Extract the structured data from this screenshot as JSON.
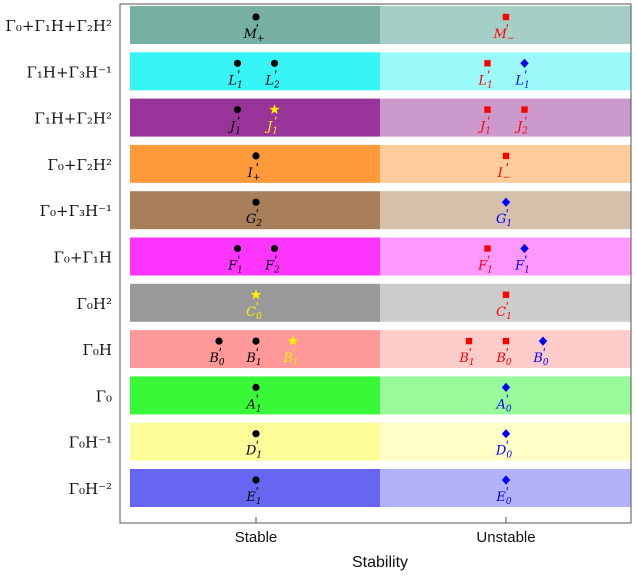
{
  "chart_data": {
    "type": "categorical-dot",
    "xlabel": "Stability",
    "x_categories": [
      "Stable",
      "Unstable"
    ],
    "rows": [
      {
        "label": "Γ₀+Γ₁H+Γ₂H²",
        "stable_color": "#76b0a3",
        "unstable_color": "#a4cfc7"
      },
      {
        "label": "Γ₁H+Γ₃H⁻¹",
        "stable_color": "#37f4f4",
        "unstable_color": "#9cf9f9"
      },
      {
        "label": "Γ₁H+Γ₂H²",
        "stable_color": "#99349b",
        "unstable_color": "#cc99cc"
      },
      {
        "label": "Γ₀+Γ₂H²",
        "stable_color": "#ff9a3a",
        "unstable_color": "#ffcc9c"
      },
      {
        "label": "Γ₀+Γ₃H⁻¹",
        "stable_color": "#a87e5b",
        "unstable_color": "#d5c0ac"
      },
      {
        "label": "Γ₀+Γ₁H",
        "stable_color": "#ff34ff",
        "unstable_color": "#ff99ff"
      },
      {
        "label": "Γ₀H²",
        "stable_color": "#999999",
        "unstable_color": "#cccccc"
      },
      {
        "label": "Γ₀H",
        "stable_color": "#ff9999",
        "unstable_color": "#ffcccc"
      },
      {
        "label": "Γ₀",
        "stable_color": "#38f838",
        "unstable_color": "#99fa99"
      },
      {
        "label": "Γ₀H⁻¹",
        "stable_color": "#fdfd99",
        "unstable_color": "#fefec6"
      },
      {
        "label": "Γ₀H⁻²",
        "stable_color": "#6666f1",
        "unstable_color": "#b2b2fa"
      }
    ],
    "marker_styles": {
      "circle": "#000000",
      "star": "#ffee00",
      "square": "#ff0000",
      "diamond": "#0000ff"
    },
    "points": [
      {
        "row": 0,
        "stability": "Stable",
        "offset": 0,
        "marker": "circle",
        "label": "M+"
      },
      {
        "row": 0,
        "stability": "Unstable",
        "offset": 0,
        "marker": "square",
        "label": "M−"
      },
      {
        "row": 1,
        "stability": "Stable",
        "offset": -1,
        "marker": "circle",
        "label": "L1"
      },
      {
        "row": 1,
        "stability": "Stable",
        "offset": 1,
        "marker": "circle",
        "label": "L2"
      },
      {
        "row": 1,
        "stability": "Unstable",
        "offset": -1,
        "marker": "square",
        "label": "L1"
      },
      {
        "row": 1,
        "stability": "Unstable",
        "offset": 1,
        "marker": "diamond",
        "label": "L1"
      },
      {
        "row": 2,
        "stability": "Stable",
        "offset": -1,
        "marker": "circle",
        "label": "J1"
      },
      {
        "row": 2,
        "stability": "Stable",
        "offset": 1,
        "marker": "star",
        "label": "J1"
      },
      {
        "row": 2,
        "stability": "Unstable",
        "offset": -1,
        "marker": "square",
        "label": "J1"
      },
      {
        "row": 2,
        "stability": "Unstable",
        "offset": 1,
        "marker": "square",
        "label": "J2"
      },
      {
        "row": 3,
        "stability": "Stable",
        "offset": 0,
        "marker": "circle",
        "label": "I+"
      },
      {
        "row": 3,
        "stability": "Unstable",
        "offset": 0,
        "marker": "square",
        "label": "I−"
      },
      {
        "row": 4,
        "stability": "Stable",
        "offset": 0,
        "marker": "circle",
        "label": "G2"
      },
      {
        "row": 4,
        "stability": "Unstable",
        "offset": 0,
        "marker": "diamond",
        "label": "G1"
      },
      {
        "row": 5,
        "stability": "Stable",
        "offset": -1,
        "marker": "circle",
        "label": "F1"
      },
      {
        "row": 5,
        "stability": "Stable",
        "offset": 1,
        "marker": "circle",
        "label": "F2"
      },
      {
        "row": 5,
        "stability": "Unstable",
        "offset": -1,
        "marker": "square",
        "label": "F1"
      },
      {
        "row": 5,
        "stability": "Unstable",
        "offset": 1,
        "marker": "diamond",
        "label": "F1"
      },
      {
        "row": 6,
        "stability": "Stable",
        "offset": 0,
        "marker": "star",
        "label": "C0"
      },
      {
        "row": 6,
        "stability": "Unstable",
        "offset": 0,
        "marker": "square",
        "label": "C1"
      },
      {
        "row": 7,
        "stability": "Stable",
        "offset": -2,
        "marker": "circle",
        "label": "B0"
      },
      {
        "row": 7,
        "stability": "Stable",
        "offset": 0,
        "marker": "circle",
        "label": "B1"
      },
      {
        "row": 7,
        "stability": "Stable",
        "offset": 2,
        "marker": "star",
        "label": "B1"
      },
      {
        "row": 7,
        "stability": "Unstable",
        "offset": -2,
        "marker": "square",
        "label": "B1"
      },
      {
        "row": 7,
        "stability": "Unstable",
        "offset": 0,
        "marker": "square",
        "label": "B0"
      },
      {
        "row": 7,
        "stability": "Unstable",
        "offset": 2,
        "marker": "diamond",
        "label": "B0"
      },
      {
        "row": 8,
        "stability": "Stable",
        "offset": 0,
        "marker": "circle",
        "label": "A1"
      },
      {
        "row": 8,
        "stability": "Unstable",
        "offset": 0,
        "marker": "diamond",
        "label": "A0"
      },
      {
        "row": 9,
        "stability": "Stable",
        "offset": 0,
        "marker": "circle",
        "label": "D1"
      },
      {
        "row": 9,
        "stability": "Unstable",
        "offset": 0,
        "marker": "diamond",
        "label": "D0"
      },
      {
        "row": 10,
        "stability": "Stable",
        "offset": 0,
        "marker": "circle",
        "label": "E1"
      },
      {
        "row": 10,
        "stability": "Unstable",
        "offset": 0,
        "marker": "diamond",
        "label": "E0"
      }
    ]
  }
}
